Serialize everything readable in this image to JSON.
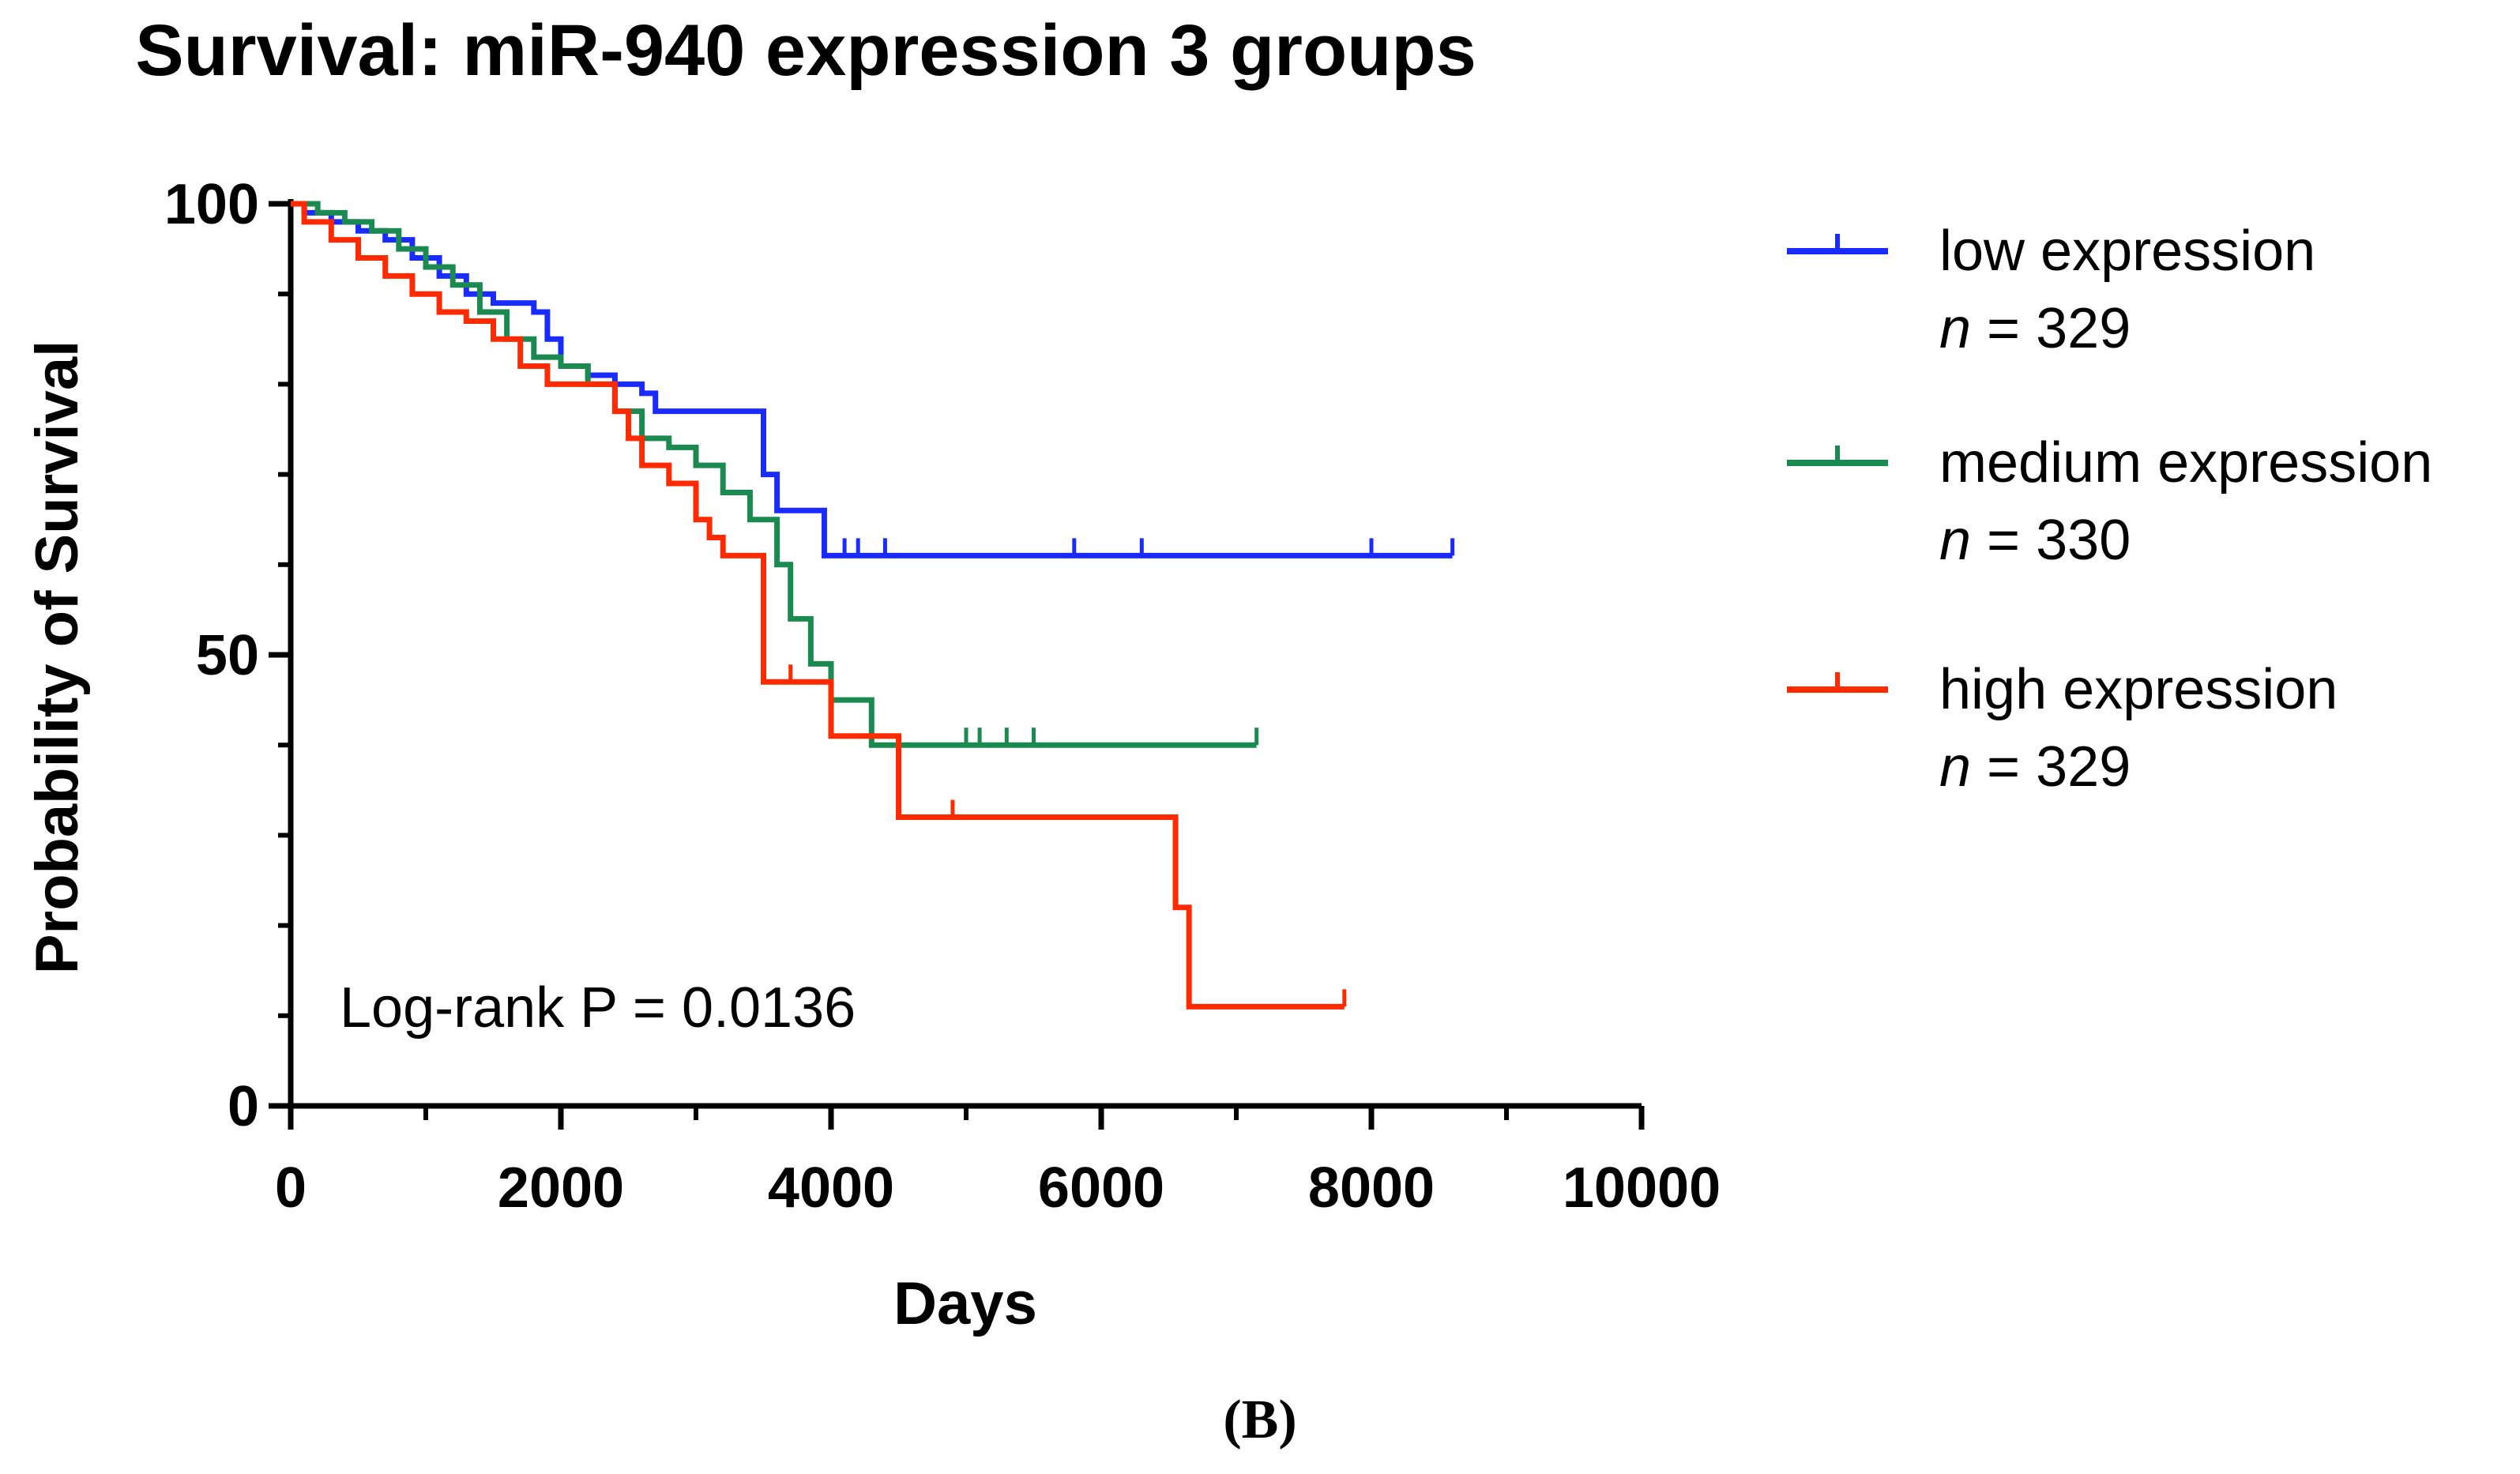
{
  "chart_data": {
    "type": "line",
    "subtype": "kaplan-meier",
    "title": "Survival: miR-940 expression 3 groups",
    "xlabel": "Days",
    "ylabel": "Probability of Survival",
    "xlim": [
      0,
      10000
    ],
    "ylim": [
      0,
      100
    ],
    "xticks": [
      0,
      2000,
      4000,
      6000,
      8000,
      10000
    ],
    "xtick_labels": [
      "0",
      "2000",
      "4000",
      "6000",
      "8000",
      "10000"
    ],
    "yticks": [
      0,
      50,
      100
    ],
    "ytick_labels": [
      "0",
      "50",
      "100"
    ],
    "y_minor_ticks": [
      10,
      20,
      30,
      40,
      60,
      70,
      80,
      90
    ],
    "x_minor_ticks": [
      1000,
      3000,
      5000,
      7000,
      9000
    ],
    "annotation": "Log-rank P = 0.0136",
    "panel_label": "(B)",
    "legend_position": "right",
    "series": [
      {
        "name": "low expression",
        "n_label": "n",
        "n_value": "= 329",
        "color": "#1a2bff",
        "steps": [
          [
            0,
            100
          ],
          [
            100,
            99
          ],
          [
            300,
            98
          ],
          [
            500,
            97
          ],
          [
            700,
            96
          ],
          [
            900,
            94
          ],
          [
            1100,
            92
          ],
          [
            1300,
            90
          ],
          [
            1500,
            89
          ],
          [
            1750,
            89
          ],
          [
            1800,
            88
          ],
          [
            1900,
            85
          ],
          [
            2000,
            82
          ],
          [
            2200,
            81
          ],
          [
            2400,
            80
          ],
          [
            2600,
            79
          ],
          [
            2700,
            77
          ],
          [
            3000,
            77
          ],
          [
            3400,
            77
          ],
          [
            3500,
            70
          ],
          [
            3600,
            66
          ],
          [
            3900,
            66
          ],
          [
            3950,
            61
          ],
          [
            8600,
            61
          ]
        ],
        "censor_days": [
          4100,
          4200,
          4400,
          5800,
          6300,
          8000,
          8600
        ]
      },
      {
        "name": "medium expression",
        "n_label": "n",
        "n_value": "= 330",
        "color": "#1b8a50",
        "steps": [
          [
            0,
            100
          ],
          [
            200,
            99
          ],
          [
            400,
            98
          ],
          [
            600,
            97
          ],
          [
            800,
            95
          ],
          [
            1000,
            93
          ],
          [
            1200,
            91
          ],
          [
            1400,
            88
          ],
          [
            1600,
            85
          ],
          [
            1800,
            83
          ],
          [
            2000,
            82
          ],
          [
            2200,
            80
          ],
          [
            2400,
            77
          ],
          [
            2600,
            74
          ],
          [
            2800,
            73
          ],
          [
            3000,
            71
          ],
          [
            3200,
            68
          ],
          [
            3400,
            65
          ],
          [
            3600,
            60
          ],
          [
            3700,
            54
          ],
          [
            3850,
            49
          ],
          [
            4000,
            45
          ],
          [
            4300,
            40
          ],
          [
            7150,
            40
          ]
        ],
        "censor_days": [
          5000,
          5100,
          5300,
          5500,
          7150
        ]
      },
      {
        "name": "high expression",
        "n_label": "n",
        "n_value": "= 329",
        "color": "#ff2a00",
        "steps": [
          [
            0,
            100
          ],
          [
            100,
            98
          ],
          [
            300,
            96
          ],
          [
            500,
            94
          ],
          [
            700,
            92
          ],
          [
            900,
            90
          ],
          [
            1100,
            88
          ],
          [
            1300,
            87
          ],
          [
            1500,
            85
          ],
          [
            1700,
            82
          ],
          [
            1900,
            80
          ],
          [
            2200,
            80
          ],
          [
            2400,
            77
          ],
          [
            2500,
            74
          ],
          [
            2600,
            71
          ],
          [
            2800,
            69
          ],
          [
            3000,
            65
          ],
          [
            3100,
            63
          ],
          [
            3200,
            61
          ],
          [
            3450,
            61
          ],
          [
            3500,
            47
          ],
          [
            3950,
            47
          ],
          [
            4000,
            41
          ],
          [
            4450,
            41
          ],
          [
            4500,
            32
          ],
          [
            6500,
            32
          ],
          [
            6550,
            22
          ],
          [
            6650,
            11
          ],
          [
            7800,
            11
          ]
        ],
        "censor_days": [
          3700,
          4900,
          7800
        ]
      }
    ]
  }
}
